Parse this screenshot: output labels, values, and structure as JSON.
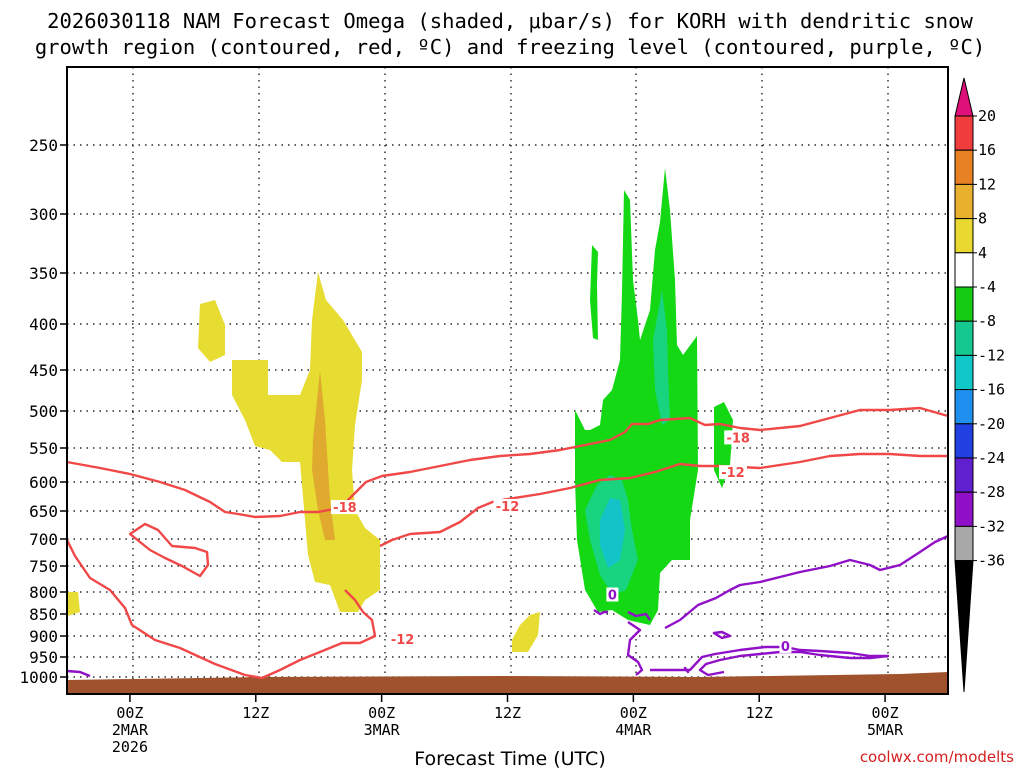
{
  "chart_data": {
    "type": "heatmap",
    "title_line1": "2026030118 NAM Forecast Omega (shaded, μbar/s) for KORH with dendritic snow",
    "title_line2": "growth region (contoured, red, ºC) and freezing level (contoured, purple, ºC)",
    "xlabel": "Forecast Time (UTC)",
    "ylabel": "",
    "credit": "coolwx.com/modelts",
    "y_ticks": [
      "250",
      "300",
      "350",
      "400",
      "450",
      "500",
      "550",
      "600",
      "650",
      "700",
      "750",
      "800",
      "850",
      "900",
      "950",
      "1000"
    ],
    "x_ticks": [
      {
        "time": "00Z",
        "date": "2MAR",
        "year": "2026"
      },
      {
        "time": "12Z",
        "date": "",
        "year": ""
      },
      {
        "time": "00Z",
        "date": "3MAR",
        "year": ""
      },
      {
        "time": "12Z",
        "date": "",
        "year": ""
      },
      {
        "time": "00Z",
        "date": "4MAR",
        "year": ""
      },
      {
        "time": "12Z",
        "date": "",
        "year": ""
      },
      {
        "time": "00Z",
        "date": "5MAR",
        "year": ""
      }
    ],
    "x_range_hours": [
      -6,
      78
    ],
    "colorbar": {
      "labels": [
        "20",
        "16",
        "12",
        "8",
        "4",
        "-4",
        "-8",
        "-12",
        "-16",
        "-20",
        "-24",
        "-28",
        "-32",
        "-36"
      ],
      "colors": [
        "#f03c3c",
        "#e88024",
        "#e8b02c",
        "#e8d830",
        "#ffffff",
        "#14cc14",
        "#14c890",
        "#10c8c8",
        "#2090f0",
        "#2040e0",
        "#6020d0",
        "#9010c8",
        "#a8a8a8"
      ],
      "top_arrow_color": "#e0107a",
      "bottom_arrow_color": "#000000"
    },
    "shading_colors": {
      "pos4": "#e6dc32",
      "pos8": "#e0aa2e",
      "neg4": "#14d814",
      "neg8": "#18d47e",
      "neg12": "#12c4c8",
      "ground": "#a0522d"
    },
    "contours": [
      {
        "name": "dgz-top-minus-18",
        "label": "-18",
        "color": "#f04848"
      },
      {
        "name": "dgz-bottom-minus-12",
        "label": "-12",
        "color": "#f04848"
      },
      {
        "name": "freezing-level-0",
        "label": "0",
        "color": "#9010c8"
      }
    ],
    "contour_labels": [
      {
        "text": "-18",
        "color": "#f04848",
        "hour": 20.5,
        "p": 645
      },
      {
        "text": "-12",
        "color": "#f04848",
        "hour": 36.0,
        "p": 643
      },
      {
        "text": "-18",
        "color": "#f04848",
        "hour": 58.0,
        "p": 537
      },
      {
        "text": "-12",
        "color": "#f04848",
        "hour": 57.5,
        "p": 587
      },
      {
        "text": "-12",
        "color": "#f04848",
        "hour": 26.0,
        "p": 910
      },
      {
        "text": "0",
        "color": "#9010c8",
        "hour": 46.0,
        "p": 808
      },
      {
        "text": "0",
        "color": "#9010c8",
        "hour": 62.5,
        "p": 926
      }
    ]
  }
}
